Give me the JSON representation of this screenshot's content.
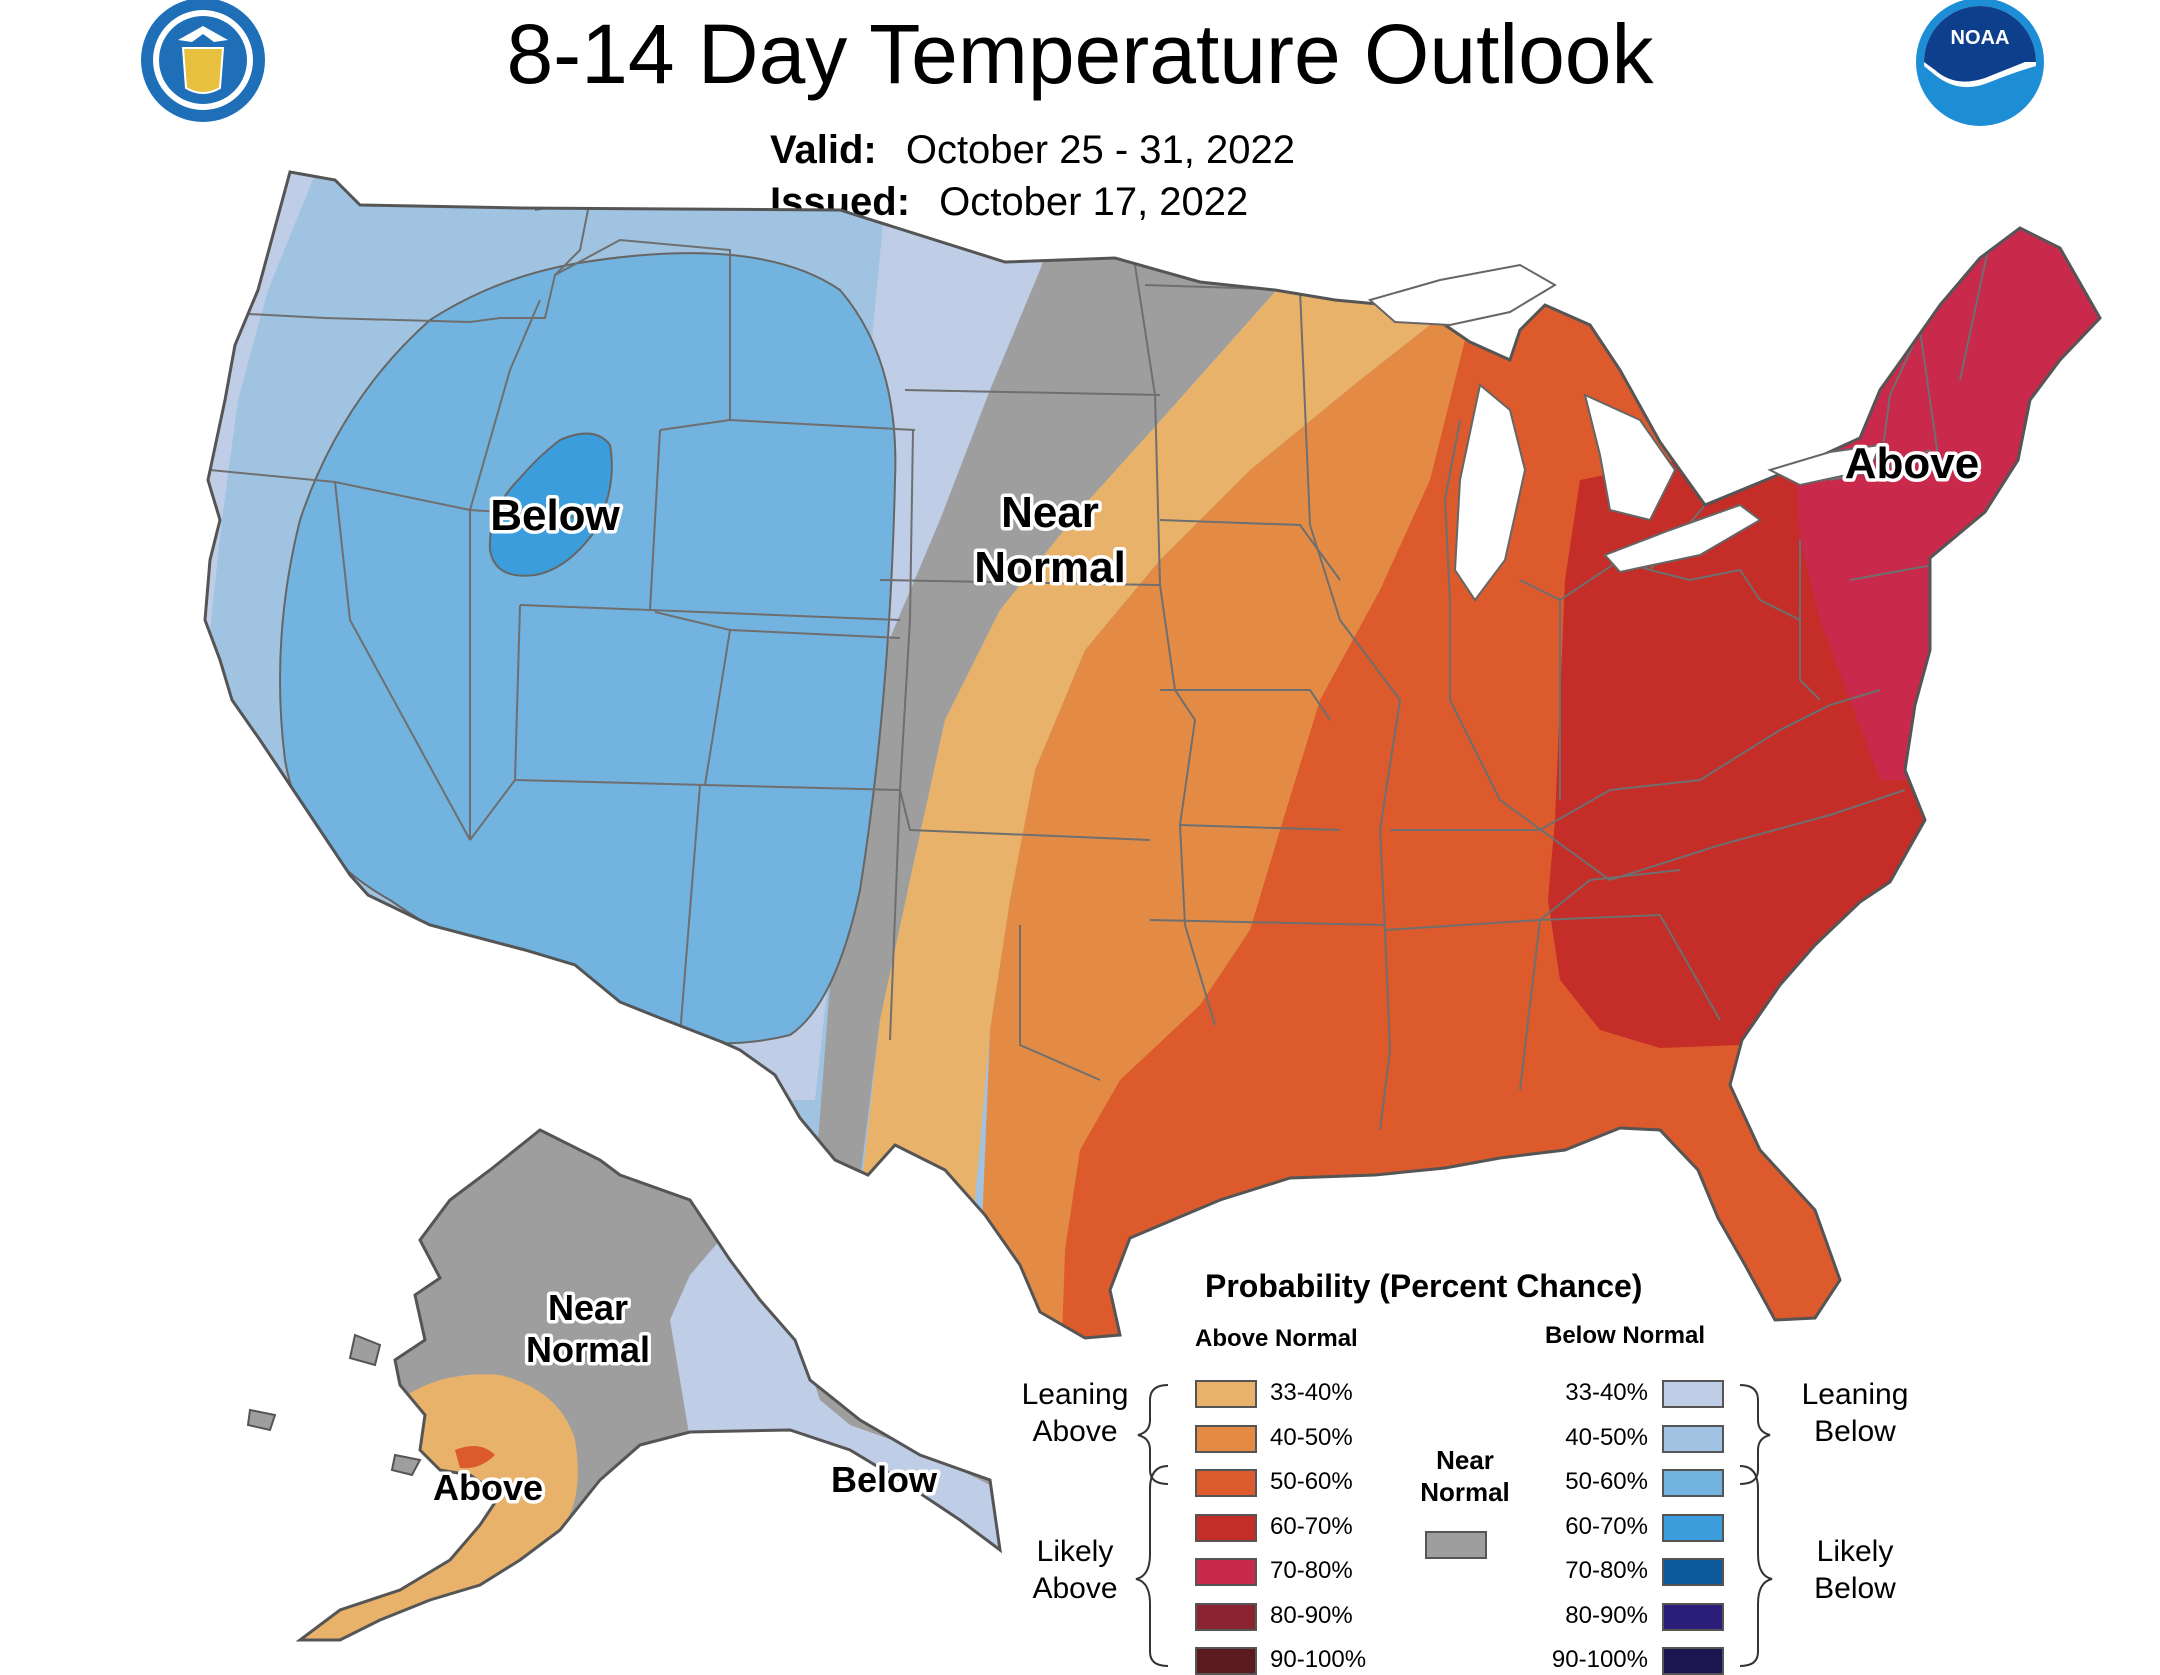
{
  "title": "8-14 Day Temperature Outlook",
  "valid_label": "Valid:",
  "valid_value": "October 25 - 31, 2022",
  "issued_label": "Issued:",
  "issued_value": "October 17, 2022",
  "logos": {
    "left": "doc-seal-icon",
    "right": "noaa-logo-icon",
    "noaa_text": "NOAA"
  },
  "map_labels": {
    "below": "Below",
    "near_normal_line1": "Near",
    "near_normal_line2": "Normal",
    "above": "Above",
    "ak_near_line1": "Near",
    "ak_near_line2": "Normal",
    "ak_above": "Above",
    "ak_below": "Below"
  },
  "legend": {
    "title": "Probability (Percent Chance)",
    "above_header": "Above Normal",
    "below_header": "Below Normal",
    "leaning_above_line1": "Leaning",
    "leaning_above_line2": "Above",
    "likely_above_line1": "Likely",
    "likely_above_line2": "Above",
    "leaning_below_line1": "Leaning",
    "leaning_below_line2": "Below",
    "likely_below_line1": "Likely",
    "likely_below_line2": "Below",
    "near_line1": "Near",
    "near_line2": "Normal",
    "near_color": "#9e9e9e",
    "above": [
      {
        "range": "33-40%",
        "color": "#e8b26a"
      },
      {
        "range": "40-50%",
        "color": "#e38b45"
      },
      {
        "range": "50-60%",
        "color": "#dc5a2c"
      },
      {
        "range": "60-70%",
        "color": "#c42d28"
      },
      {
        "range": "70-80%",
        "color": "#c9294a"
      },
      {
        "range": "80-90%",
        "color": "#8b2330"
      },
      {
        "range": "90-100%",
        "color": "#5b1920"
      }
    ],
    "below": [
      {
        "range": "33-40%",
        "color": "#bfcde6"
      },
      {
        "range": "40-50%",
        "color": "#9fc3e1"
      },
      {
        "range": "50-60%",
        "color": "#72b3e0"
      },
      {
        "range": "60-70%",
        "color": "#3b9ddb"
      },
      {
        "range": "70-80%",
        "color": "#0e5a9c"
      },
      {
        "range": "80-90%",
        "color": "#2a1e78"
      },
      {
        "range": "90-100%",
        "color": "#1b1550"
      }
    ]
  }
}
